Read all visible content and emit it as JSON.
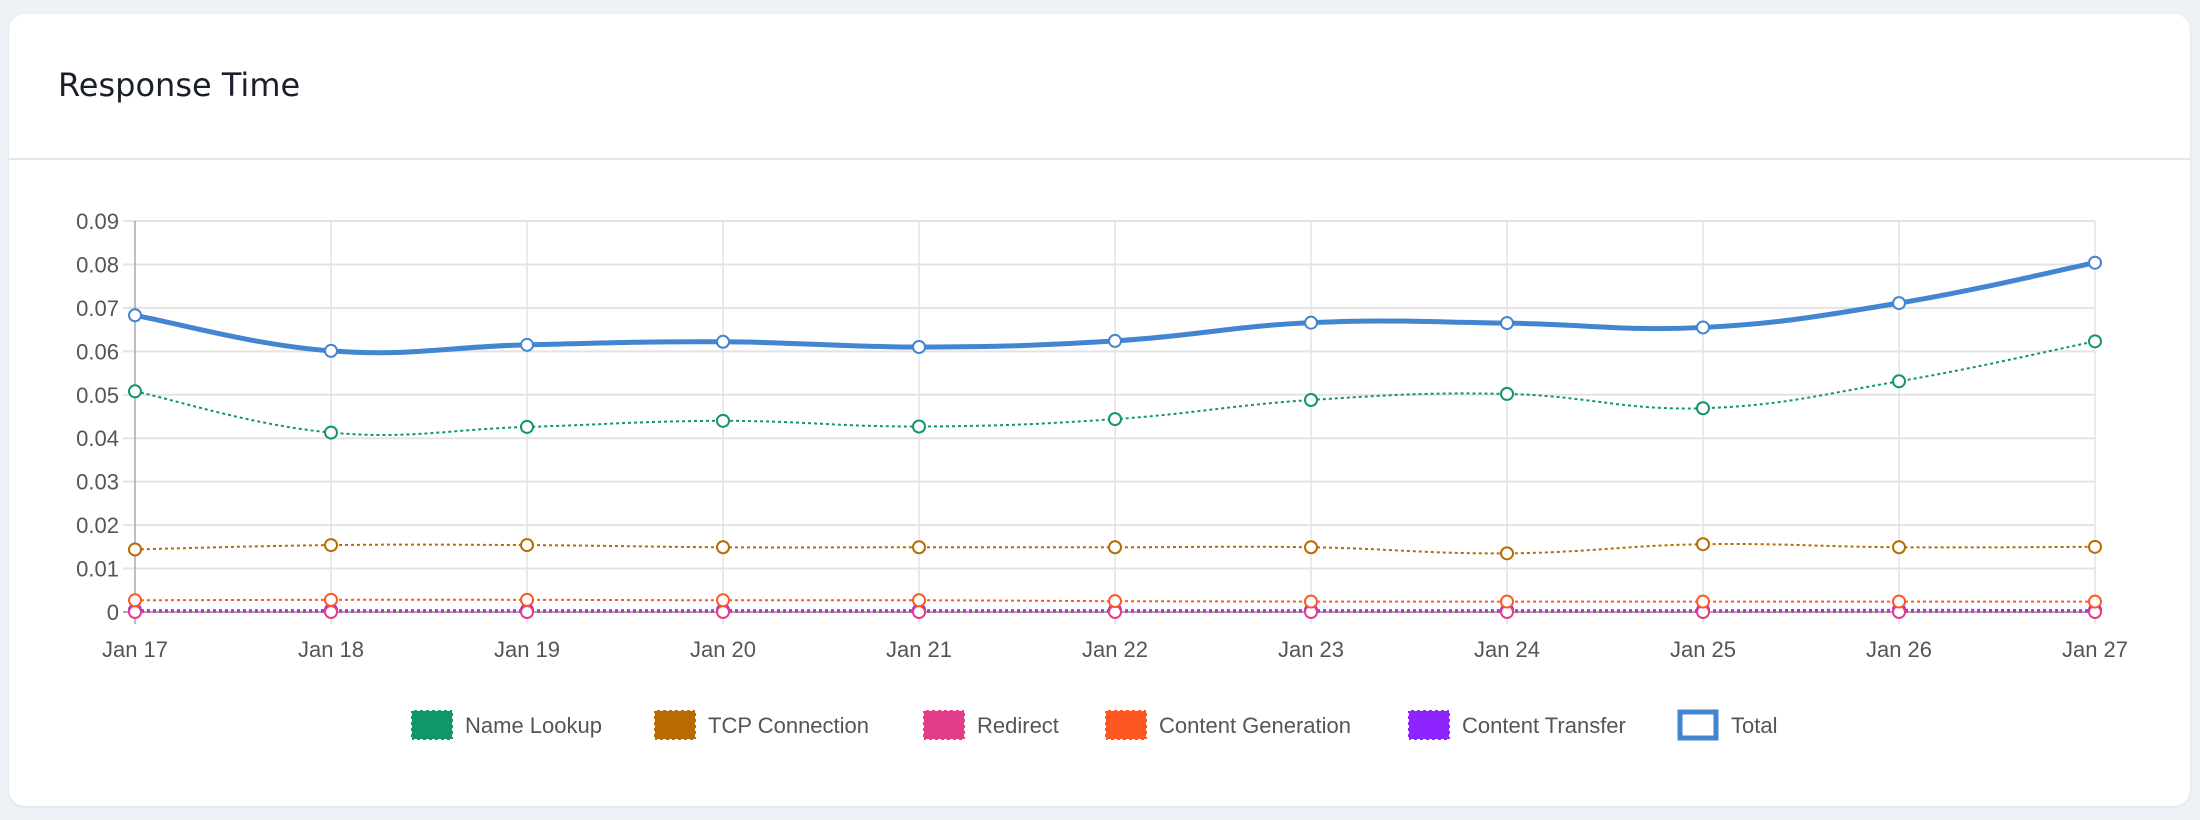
{
  "card": {
    "title": "Response Time"
  },
  "chart_data": {
    "type": "line",
    "title": "",
    "xlabel": "",
    "ylabel": "",
    "categories": [
      "Jan 17",
      "Jan 18",
      "Jan 19",
      "Jan 20",
      "Jan 21",
      "Jan 22",
      "Jan 23",
      "Jan 24",
      "Jan 25",
      "Jan 26",
      "Jan 27"
    ],
    "ylim": [
      0,
      0.09
    ],
    "yticks": [
      "0",
      "0.01",
      "0.02",
      "0.03",
      "0.04",
      "0.05",
      "0.06",
      "0.07",
      "0.08",
      "0.09"
    ],
    "grid": true,
    "legend_position": "bottom",
    "series": [
      {
        "name": "Name Lookup",
        "color": "#10966a",
        "style": "dotted",
        "values": [
          0.0508,
          0.0413,
          0.0426,
          0.044,
          0.0427,
          0.0444,
          0.0488,
          0.0502,
          0.0469,
          0.0531,
          0.0623
        ]
      },
      {
        "name": "TCP Connection",
        "color": "#b86b00",
        "style": "dotted",
        "values": [
          0.0144,
          0.0154,
          0.0154,
          0.0149,
          0.0149,
          0.0149,
          0.0149,
          0.0135,
          0.0156,
          0.0149,
          0.015
        ]
      },
      {
        "name": "Redirect",
        "color": "#e23d89",
        "style": "dotted",
        "values": [
          0,
          0,
          0,
          0,
          0,
          0,
          0,
          0,
          0,
          0,
          0
        ]
      },
      {
        "name": "Content Generation",
        "color": "#ff5722",
        "style": "dotted",
        "values": [
          0.0027,
          0.0028,
          0.0028,
          0.0027,
          0.0027,
          0.0025,
          0.0024,
          0.0024,
          0.0024,
          0.0024,
          0.0024
        ]
      },
      {
        "name": "Content Transfer",
        "color": "#8e24ff",
        "style": "dotted",
        "values": [
          0.0004,
          0.0004,
          0.0004,
          0.0004,
          0.0004,
          0.0004,
          0.0004,
          0.0004,
          0.0004,
          0.0005,
          0.0004
        ]
      },
      {
        "name": "Total",
        "color": "#4285d0",
        "style": "solid",
        "values": [
          0.0683,
          0.0601,
          0.0615,
          0.0622,
          0.061,
          0.0624,
          0.0666,
          0.0665,
          0.0655,
          0.0711,
          0.0804
        ]
      }
    ]
  }
}
